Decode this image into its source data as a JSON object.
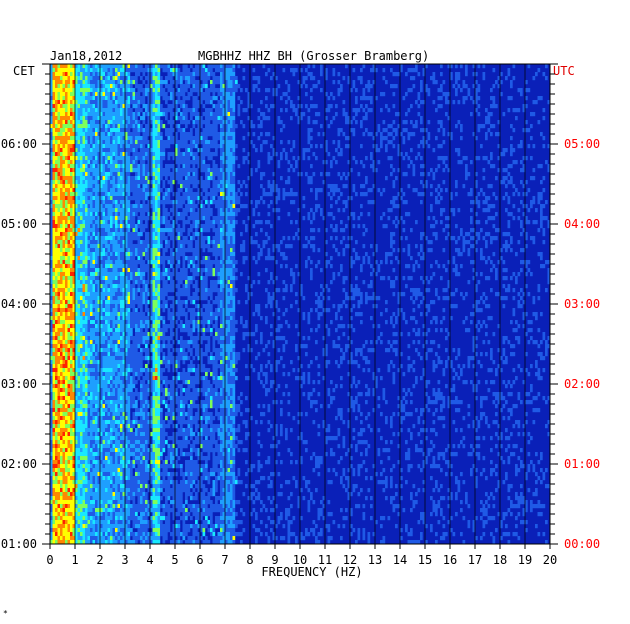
{
  "header": {
    "date": "Jan18,2012",
    "station": "MGBHHZ HHZ BH (Grosser Bramberg)"
  },
  "left_axis_label": "CET",
  "right_axis_label": "UTC",
  "corner_mark": "*",
  "colors": {
    "background": "#ffffff",
    "text": "#000000",
    "utc_text": "#ff0000",
    "plot_base": "#0a20b8",
    "grid": "#000000"
  },
  "chart_data": {
    "type": "heatmap",
    "title": "",
    "xlabel": "FREQUENCY (HZ)",
    "x_ticks": [
      "0",
      "1",
      "2",
      "3",
      "4",
      "5",
      "6",
      "7",
      "8",
      "9",
      "10",
      "11",
      "12",
      "13",
      "14",
      "15",
      "16",
      "17",
      "18",
      "19",
      "20"
    ],
    "xlim": [
      0,
      20
    ],
    "y_ticks_cet": [
      "06:00",
      "05:00",
      "04:00",
      "03:00",
      "02:00",
      "01:00"
    ],
    "y_ticks_utc": [
      "05:00",
      "04:00",
      "03:00",
      "02:00",
      "01:00",
      "00:00"
    ],
    "colormap": [
      "#0a20b8",
      "#1f5ae6",
      "#1e9fff",
      "#19e8ff",
      "#7dff5a",
      "#ffff00",
      "#ff8800",
      "#ff2200"
    ],
    "description_bands": [
      {
        "freq_range_hz": [
          0.1,
          0.9
        ],
        "intensity": "high"
      },
      {
        "freq_range_hz": [
          0.9,
          3.2
        ],
        "intensity": "medium"
      },
      {
        "freq_range_hz": [
          4.1,
          4.4
        ],
        "intensity": "medium-high"
      },
      {
        "freq_range_hz": [
          6.8,
          7.4
        ],
        "intensity": "medium"
      },
      {
        "freq_range_hz": [
          7.4,
          20
        ],
        "intensity": "low"
      }
    ]
  }
}
